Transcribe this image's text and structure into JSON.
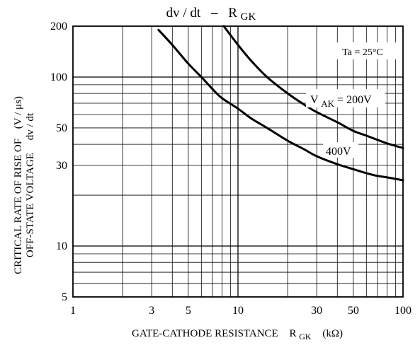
{
  "chart_data": {
    "type": "line",
    "title": "dv / dt",
    "title_dash": "–",
    "title_r": "R",
    "title_r_sub": "GK",
    "ylabel_line1": "CRITICAL RATE OF RISE OF",
    "ylabel_line1_unit": "(V / μs)",
    "ylabel_line2": "OFF-STATE VOLTAGE",
    "ylabel_line2_unit": "dv / dt",
    "xlabel_main": "GATE-CATHODE RESISTANCE",
    "xlabel_r": "R",
    "xlabel_r_sub": "GK",
    "xlabel_unit": "(kΩ)",
    "condition": "Ta = 25°C",
    "x_scale": "log",
    "y_scale": "log",
    "xlim": [
      1,
      100
    ],
    "ylim": [
      5,
      200
    ],
    "grid": true,
    "x_ticks": [
      {
        "value": 1,
        "label": "1"
      },
      {
        "value": 3,
        "label": "3"
      },
      {
        "value": 5,
        "label": "5"
      },
      {
        "value": 10,
        "label": "10"
      },
      {
        "value": 30,
        "label": "30"
      },
      {
        "value": 50,
        "label": "50"
      },
      {
        "value": 100,
        "label": "100"
      }
    ],
    "y_ticks": [
      {
        "value": 5,
        "label": "5"
      },
      {
        "value": 10,
        "label": "10"
      },
      {
        "value": 30,
        "label": "30"
      },
      {
        "value": 50,
        "label": "50"
      },
      {
        "value": 100,
        "label": "100"
      },
      {
        "value": 200,
        "label": "200"
      }
    ],
    "series": [
      {
        "name": "V",
        "name_sub": "AK",
        "name_suffix": " = 200V",
        "x": [
          8.2,
          10,
          12,
          15,
          20,
          25,
          30,
          40,
          50,
          60,
          70,
          80,
          100
        ],
        "y": [
          200,
          155,
          125,
          100,
          80,
          69,
          62,
          54,
          48,
          45,
          42.5,
          40.5,
          38
        ]
      },
      {
        "name": "400V",
        "x": [
          3.3,
          4,
          5,
          6,
          7,
          8,
          10,
          12,
          15,
          20,
          25,
          30,
          40,
          50,
          60,
          70,
          80,
          100
        ],
        "y": [
          190,
          155,
          120,
          100,
          85,
          75,
          65,
          57,
          50,
          42,
          37.5,
          34,
          30.5,
          28.5,
          27,
          26,
          25.5,
          24.5
        ]
      }
    ]
  }
}
